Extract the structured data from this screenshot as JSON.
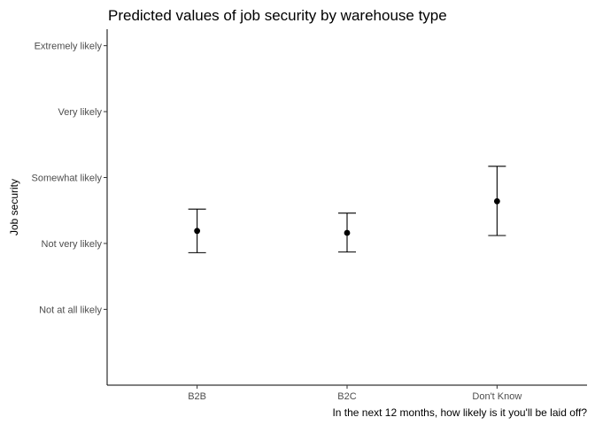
{
  "chart_data": {
    "type": "scatter",
    "title": "Predicted values of job security by warehouse type",
    "xlabel": "In the next 12 months, how likely is it you'll be laid off?",
    "ylabel": "Job security",
    "categories": [
      "B2B",
      "B2C",
      "Don't Know"
    ],
    "y_levels": [
      "Not at all likely",
      "Not very likely",
      "Somewhat likely",
      "Very likely",
      "Extremely likely"
    ],
    "y_level_values": [
      1,
      2,
      3,
      4,
      5
    ],
    "ylim": [
      -0.15,
      5.25
    ],
    "series": [
      {
        "estimate": [
          2.19,
          2.16,
          2.64
        ],
        "lower": [
          1.86,
          1.87,
          2.12
        ],
        "upper": [
          2.52,
          2.46,
          3.17
        ]
      }
    ],
    "grid": false,
    "legend": "none"
  }
}
